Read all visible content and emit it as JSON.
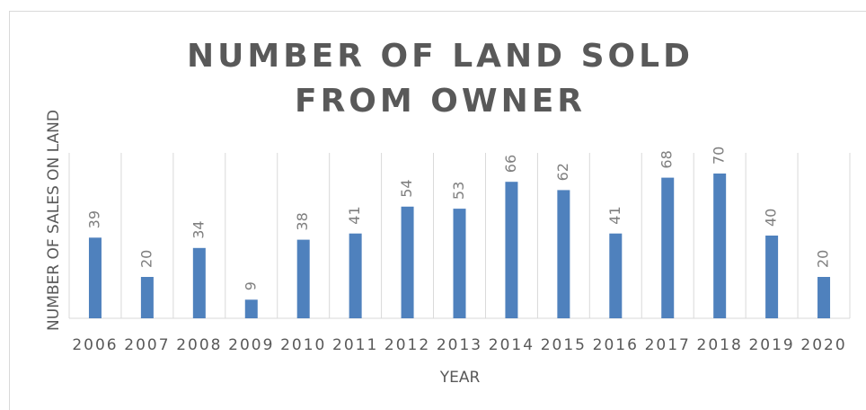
{
  "chart_data": {
    "type": "bar",
    "title": "NUMBER OF LAND SOLD FROM OWNER",
    "x_label": "YEAR",
    "y_label": "NUMBER OF SALES ON LAND",
    "categories": [
      "2006",
      "2007",
      "2008",
      "2009",
      "2010",
      "2011",
      "2012",
      "2013",
      "2014",
      "2015",
      "2016",
      "2017",
      "2018",
      "2019",
      "2020"
    ],
    "values": [
      39,
      20,
      34,
      9,
      38,
      41,
      54,
      53,
      66,
      62,
      41,
      68,
      70,
      40,
      20
    ],
    "color": "#4f81bd",
    "ylim": [
      0,
      80
    ],
    "grid": true
  }
}
